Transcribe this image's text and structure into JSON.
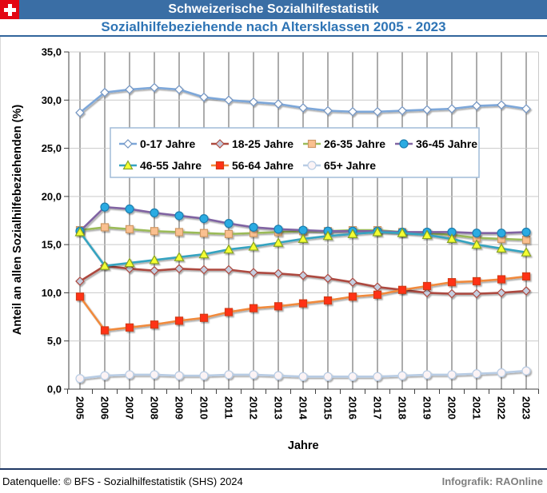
{
  "header": {
    "bar_title": "Schweizerische Sozialhilfestatistik",
    "subtitle": "Sozialhilfebeziehende nach Altersklassen 2005 - 2023",
    "flag": "swiss-flag"
  },
  "chart_data": {
    "type": "line",
    "x": [
      2005,
      2006,
      2007,
      2008,
      2009,
      2010,
      2011,
      2012,
      2013,
      2014,
      2015,
      2016,
      2017,
      2018,
      2019,
      2020,
      2021,
      2022,
      2023
    ],
    "xlabel": "Jahre",
    "ylabel": "Anteil an allen Sozialhilfebeziehenden (%)",
    "ylim": [
      0,
      35
    ],
    "ytick_step": 5,
    "ytick_decimal": "comma",
    "grid": true,
    "legend_position": "upper-center-inside",
    "legend_rows": [
      4,
      3
    ],
    "series": [
      {
        "name": "0-17 Jahre",
        "color": "#7DA7D9",
        "marker": {
          "shape": "diamond",
          "fill": "#FFFFFF",
          "stroke": "#7193C1"
        },
        "values": [
          28.7,
          30.8,
          31.1,
          31.3,
          31.1,
          30.3,
          30.0,
          29.8,
          29.6,
          29.2,
          28.9,
          28.8,
          28.8,
          28.9,
          29.0,
          29.1,
          29.4,
          29.5,
          29.1
        ]
      },
      {
        "name": "18-25 Jahre",
        "color": "#AD4A3F",
        "marker": {
          "shape": "diamond",
          "fill": "#C5CEE0",
          "stroke": "#AD4A3F"
        },
        "values": [
          11.2,
          12.8,
          12.5,
          12.3,
          12.5,
          12.4,
          12.4,
          12.1,
          12.0,
          11.8,
          11.5,
          11.1,
          10.6,
          10.3,
          10.0,
          9.9,
          9.9,
          10.0,
          10.2
        ]
      },
      {
        "name": "26-35 Jahre",
        "color": "#9BBB59",
        "marker": {
          "shape": "square",
          "fill": "#FAC090",
          "stroke": "#CE9865"
        },
        "values": [
          16.5,
          16.8,
          16.6,
          16.4,
          16.3,
          16.2,
          16.1,
          16.2,
          16.3,
          16.4,
          16.4,
          16.5,
          16.5,
          16.3,
          16.2,
          16.0,
          15.7,
          15.6,
          15.5
        ]
      },
      {
        "name": "36-45 Jahre",
        "color": "#8064A2",
        "marker": {
          "shape": "circle",
          "fill": "#29ABE2",
          "stroke": "#1C7FB0"
        },
        "values": [
          16.4,
          18.9,
          18.7,
          18.3,
          18.0,
          17.7,
          17.2,
          16.8,
          16.6,
          16.5,
          16.4,
          16.4,
          16.4,
          16.3,
          16.3,
          16.3,
          16.2,
          16.2,
          16.3
        ]
      },
      {
        "name": "46-55 Jahre",
        "color": "#35A3C0",
        "marker": {
          "shape": "triangle",
          "fill": "#F5FF33",
          "stroke": "#86A224"
        },
        "values": [
          16.3,
          12.8,
          13.1,
          13.4,
          13.7,
          14.0,
          14.5,
          14.8,
          15.2,
          15.6,
          15.9,
          16.1,
          16.3,
          16.2,
          16.0,
          15.6,
          15.0,
          14.6,
          14.2
        ]
      },
      {
        "name": "56-64 Jahre",
        "color": "#F08A3C",
        "marker": {
          "shape": "square",
          "fill": "#FF3117",
          "stroke": "#D43A12"
        },
        "values": [
          9.6,
          6.1,
          6.4,
          6.7,
          7.1,
          7.4,
          8.0,
          8.4,
          8.6,
          8.9,
          9.2,
          9.6,
          9.8,
          10.3,
          10.7,
          11.1,
          11.2,
          11.4,
          11.7
        ]
      },
      {
        "name": "65+ Jahre",
        "color": "#B8CCE4",
        "marker": {
          "shape": "circle",
          "fill": "#FBF3F5",
          "stroke": "#B8CCE4"
        },
        "values": [
          1.1,
          1.4,
          1.5,
          1.5,
          1.4,
          1.4,
          1.5,
          1.5,
          1.4,
          1.3,
          1.3,
          1.3,
          1.3,
          1.4,
          1.5,
          1.5,
          1.6,
          1.7,
          1.9
        ]
      }
    ]
  },
  "footer": {
    "source": "Datenquelle: © BFS - Sozialhilfestatistik (SHS) 2024",
    "credit": "Infografik: RAOnline"
  },
  "colors": {
    "header_bar": "#3A6EA5",
    "title_text": "#2E74B5",
    "divider_top": "#31659C",
    "divider_bottom": "#1F3864",
    "flag_red": "#E30613",
    "credit_gray": "#7F7F7F",
    "gridline": "#C9C9C9",
    "dropline": "#595959",
    "axis": "#404040",
    "legend_border": "#A0BCD9"
  }
}
